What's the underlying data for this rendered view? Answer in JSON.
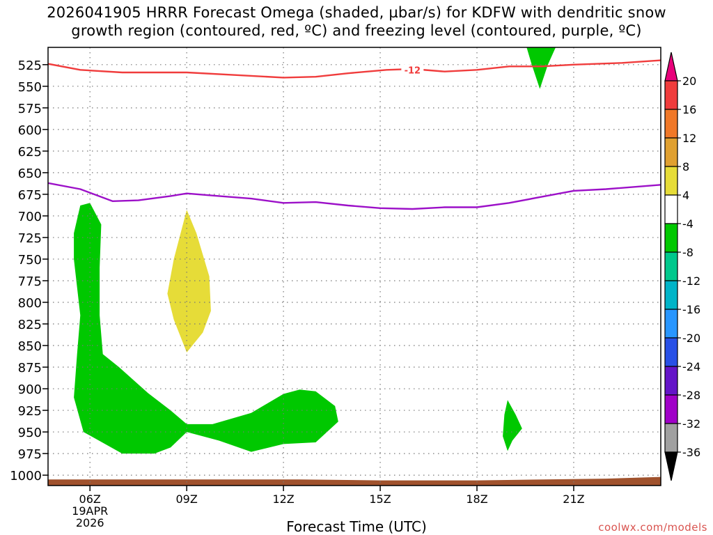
{
  "title_line1": "2026041905 HRRR Forecast Omega (shaded, µbar/s) for KDFW with dendritic snow",
  "title_line2": "growth region (contoured, red, ºC) and freezing level (contoured, purple, ºC)",
  "credit": "coolwx.com/models",
  "chart_data": {
    "type": "area",
    "title": "2026041905 HRRR Forecast Omega (shaded, µbar/s) for KDFW with dendritic snow growth region (contoured, red, ºC) and freezing level (contoured, purple, ºC)",
    "xlabel": "Forecast Time (UTC)",
    "ylabel": "",
    "x_range_hours": [
      4.7,
      23.7
    ],
    "x_ticks": [
      {
        "hour": 6,
        "label": "06Z"
      },
      {
        "hour": 9,
        "label": "09Z"
      },
      {
        "hour": 12,
        "label": "12Z"
      },
      {
        "hour": 15,
        "label": "15Z"
      },
      {
        "hour": 18,
        "label": "18Z"
      },
      {
        "hour": 21,
        "label": "21Z"
      }
    ],
    "x_sublabels": [
      "19APR",
      "2026"
    ],
    "y_axis": "pressure (hPa), reversed",
    "ylim": [
      505,
      1012
    ],
    "y_ticks": [
      525,
      550,
      575,
      600,
      625,
      650,
      675,
      700,
      725,
      750,
      775,
      800,
      825,
      850,
      875,
      900,
      925,
      950,
      975,
      1000
    ],
    "grid": true,
    "colorbar": {
      "labels": [
        20,
        16,
        12,
        8,
        4,
        -4,
        -8,
        -12,
        -16,
        -20,
        -24,
        -28,
        -32,
        -36
      ],
      "colors": [
        "#e8007a",
        "#f03c3c",
        "#f07828",
        "#e0a030",
        "#e6dc38",
        "#ffffff",
        "#00c800",
        "#00c88c",
        "#00b4c8",
        "#2896ff",
        "#2850e6",
        "#6414c8",
        "#a000c8",
        "#a0a0a0",
        "#000000"
      ]
    },
    "contours": [
      {
        "label": "-12",
        "color": "#f03c3c",
        "points": [
          [
            4.7,
            524
          ],
          [
            5.7,
            531
          ],
          [
            7.0,
            534
          ],
          [
            9.0,
            534
          ],
          [
            10.5,
            537
          ],
          [
            12.0,
            540
          ],
          [
            13.0,
            539
          ],
          [
            14.0,
            535
          ],
          [
            15.2,
            531
          ],
          [
            16.0,
            530
          ],
          [
            17.0,
            533
          ],
          [
            18.0,
            531
          ],
          [
            19.0,
            527
          ],
          [
            20.0,
            527
          ],
          [
            21.0,
            525
          ],
          [
            22.5,
            523
          ],
          [
            23.7,
            520
          ]
        ]
      },
      {
        "label": "freezing level (0)",
        "color": "#9c10c8",
        "points": [
          [
            4.7,
            662
          ],
          [
            5.7,
            669
          ],
          [
            6.7,
            683
          ],
          [
            7.5,
            682
          ],
          [
            8.5,
            677
          ],
          [
            9.0,
            674
          ],
          [
            10.0,
            677
          ],
          [
            11.0,
            680
          ],
          [
            12.0,
            685
          ],
          [
            13.0,
            684
          ],
          [
            14.0,
            688
          ],
          [
            15.0,
            691
          ],
          [
            16.0,
            692
          ],
          [
            17.0,
            690
          ],
          [
            18.0,
            690
          ],
          [
            19.0,
            685
          ],
          [
            20.0,
            678
          ],
          [
            21.0,
            671
          ],
          [
            22.0,
            669
          ],
          [
            23.7,
            664
          ]
        ]
      }
    ],
    "shaded_regions": [
      {
        "omega": -6,
        "color": "#00c800",
        "points": [
          [
            5.7,
            688
          ],
          [
            6.0,
            685
          ],
          [
            6.35,
            710
          ],
          [
            6.3,
            760
          ],
          [
            6.3,
            815
          ],
          [
            6.4,
            860
          ],
          [
            6.9,
            875
          ],
          [
            7.8,
            905
          ],
          [
            8.5,
            925
          ],
          [
            9.0,
            941
          ],
          [
            9.8,
            941
          ],
          [
            11.0,
            928
          ],
          [
            12.0,
            906
          ],
          [
            12.5,
            901
          ],
          [
            13.0,
            903
          ],
          [
            13.6,
            920
          ],
          [
            13.7,
            938
          ],
          [
            13.0,
            962
          ],
          [
            12.0,
            964
          ],
          [
            11.0,
            973
          ],
          [
            10.0,
            960
          ],
          [
            9.0,
            950
          ],
          [
            8.5,
            968
          ],
          [
            8.0,
            975
          ],
          [
            7.0,
            975
          ],
          [
            5.8,
            950
          ],
          [
            5.5,
            910
          ],
          [
            5.6,
            860
          ],
          [
            5.7,
            815
          ],
          [
            5.5,
            750
          ],
          [
            5.5,
            720
          ]
        ]
      },
      {
        "omega": 6,
        "color": "#e6dc38",
        "points": [
          [
            9.0,
            693
          ],
          [
            9.3,
            720
          ],
          [
            9.7,
            770
          ],
          [
            9.75,
            810
          ],
          [
            9.5,
            835
          ],
          [
            9.0,
            858
          ],
          [
            8.6,
            820
          ],
          [
            8.4,
            790
          ],
          [
            8.6,
            750
          ]
        ]
      },
      {
        "omega": -6,
        "color": "#00c800",
        "points": [
          [
            18.95,
            913
          ],
          [
            19.2,
            930
          ],
          [
            19.4,
            946
          ],
          [
            19.1,
            960
          ],
          [
            18.95,
            972
          ],
          [
            18.8,
            955
          ],
          [
            18.85,
            930
          ]
        ]
      },
      {
        "omega": -6,
        "color": "#00c800",
        "points": [
          [
            19.5,
            500
          ],
          [
            20.5,
            500
          ],
          [
            20.2,
            525
          ],
          [
            19.95,
            553
          ],
          [
            19.7,
            525
          ]
        ]
      }
    ],
    "surface": {
      "color": "#a0522d",
      "points": [
        [
          4.7,
          1005
        ],
        [
          12.5,
          1005
        ],
        [
          15.0,
          1006
        ],
        [
          18.0,
          1006
        ],
        [
          22.0,
          1004
        ],
        [
          23.7,
          1002
        ]
      ]
    }
  }
}
